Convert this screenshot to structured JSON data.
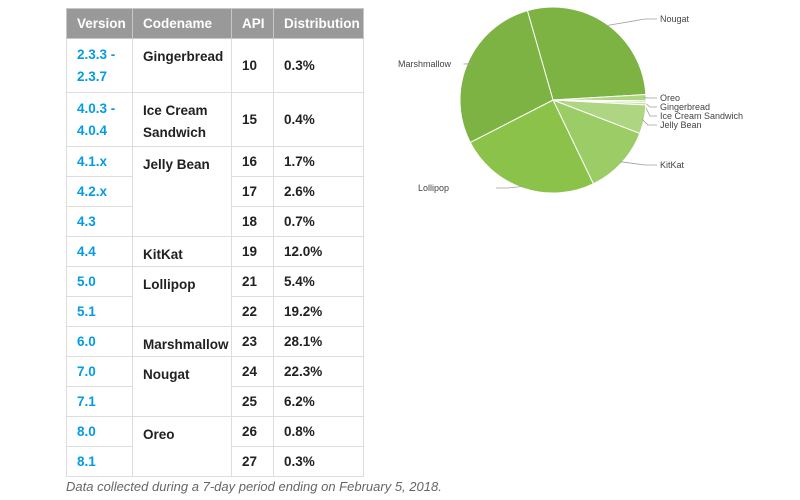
{
  "table": {
    "headers": [
      "Version",
      "Codename",
      "API",
      "Distribution"
    ]
  },
  "chart_data": [
    {
      "type": "table",
      "columns": [
        "Version",
        "Codename",
        "API",
        "Distribution"
      ],
      "rows": [
        {
          "version": "2.3.3 -\n2.3.7",
          "codename": "Gingerbread",
          "api": "10",
          "distribution": "0.3%"
        },
        {
          "version": "4.0.3 -\n4.0.4",
          "codename": "Ice Cream\nSandwich",
          "api": "15",
          "distribution": "0.4%"
        },
        {
          "version": "4.1.x",
          "codename": "Jelly Bean",
          "api": "16",
          "distribution": "1.7%"
        },
        {
          "version": "4.2.x",
          "codename": "",
          "api": "17",
          "distribution": "2.6%"
        },
        {
          "version": "4.3",
          "codename": "",
          "api": "18",
          "distribution": "0.7%"
        },
        {
          "version": "4.4",
          "codename": "KitKat",
          "api": "19",
          "distribution": "12.0%"
        },
        {
          "version": "5.0",
          "codename": "Lollipop",
          "api": "21",
          "distribution": "5.4%"
        },
        {
          "version": "5.1",
          "codename": "",
          "api": "22",
          "distribution": "19.2%"
        },
        {
          "version": "6.0",
          "codename": "Marshmallow",
          "api": "23",
          "distribution": "28.1%"
        },
        {
          "version": "7.0",
          "codename": "Nougat",
          "api": "24",
          "distribution": "22.3%"
        },
        {
          "version": "7.1",
          "codename": "",
          "api": "25",
          "distribution": "6.2%"
        },
        {
          "version": "8.0",
          "codename": "Oreo",
          "api": "26",
          "distribution": "0.8%"
        },
        {
          "version": "8.1",
          "codename": "",
          "api": "27",
          "distribution": "0.3%"
        }
      ]
    },
    {
      "type": "pie",
      "slices": [
        {
          "label": "Nougat",
          "value": 28.5
        },
        {
          "label": "Oreo",
          "value": 1.1
        },
        {
          "label": "Gingerbread",
          "value": 0.3
        },
        {
          "label": "Ice Cream Sandwich",
          "value": 0.4
        },
        {
          "label": "Jelly Bean",
          "value": 5.0
        },
        {
          "label": "KitKat",
          "value": 12.0
        },
        {
          "label": "Lollipop",
          "value": 24.6
        },
        {
          "label": "Marshmallow",
          "value": 28.1
        }
      ],
      "start_angle_deg": -16,
      "direction": "clockwise",
      "colors": [
        "#7cb342",
        "#aed581",
        "#c5e1a5",
        "#c5e1a5",
        "#aed581",
        "#9ccc65",
        "#8bc34a",
        "#7cb342"
      ]
    }
  ],
  "caption": "Data collected during a 7-day period ending on February 5, 2018."
}
